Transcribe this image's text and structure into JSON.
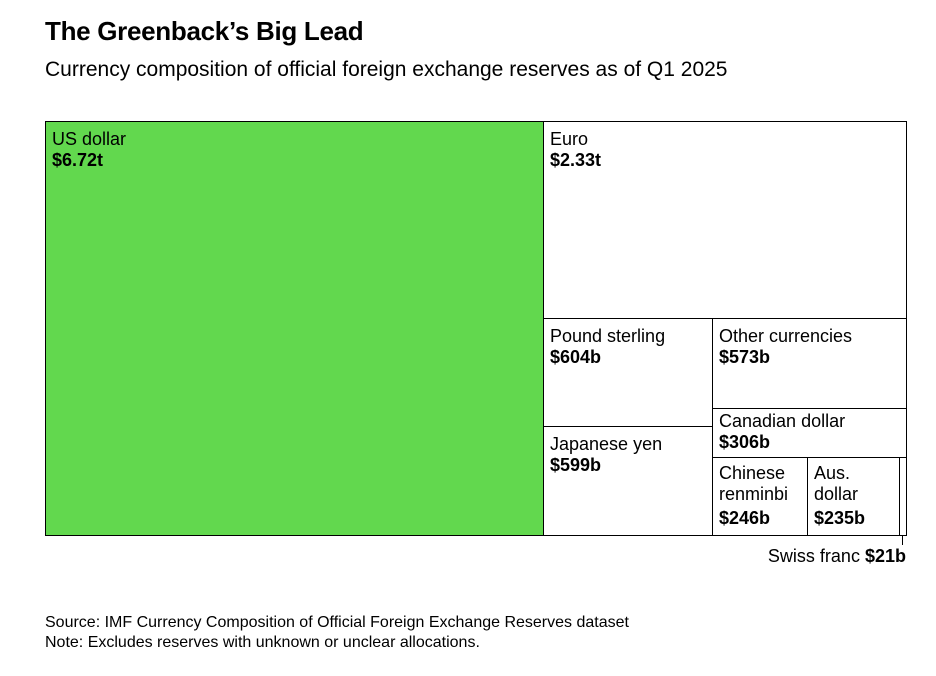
{
  "header": {
    "title": "The Greenback’s Big Lead",
    "subtitle": "Currency composition of official foreign exchange reserves as of Q1 2025"
  },
  "colors": {
    "highlight": "#62d84e",
    "default_fill": "#ffffff",
    "border": "#000000"
  },
  "chart_data": {
    "type": "treemap",
    "title": "The Greenback’s Big Lead",
    "subtitle": "Currency composition of official foreign exchange reserves as of Q1 2025",
    "unit": "USD",
    "items": [
      {
        "name": "US dollar",
        "label": "US dollar",
        "value_label": "$6.72t",
        "value": 6720000000000,
        "highlight": true
      },
      {
        "name": "Euro",
        "label": "Euro",
        "value_label": "$2.33t",
        "value": 2330000000000
      },
      {
        "name": "Pound sterling",
        "label": "Pound sterling",
        "value_label": "$604b",
        "value": 604000000000
      },
      {
        "name": "Other currencies",
        "label": "Other currencies",
        "value_label": "$573b",
        "value": 573000000000
      },
      {
        "name": "Japanese yen",
        "label": "Japanese yen",
        "value_label": "$599b",
        "value": 599000000000
      },
      {
        "name": "Canadian dollar",
        "label": "Canadian dollar",
        "value_label": "$306b",
        "value": 306000000000
      },
      {
        "name": "Chinese renminbi",
        "label": "Chinese\nrenminbi",
        "value_label": "$246b",
        "value": 246000000000
      },
      {
        "name": "Aus. dollar",
        "label": "Aus.\ndollar",
        "value_label": "$235b",
        "value": 235000000000
      },
      {
        "name": "Swiss franc",
        "label": "Swiss franc",
        "value_label": "$21b",
        "value": 21000000000
      }
    ]
  },
  "footer": {
    "source": "Source: IMF Currency Composition of Official Foreign Exchange Reserves dataset",
    "note": "Note: Excludes reserves with unknown or unclear allocations."
  }
}
